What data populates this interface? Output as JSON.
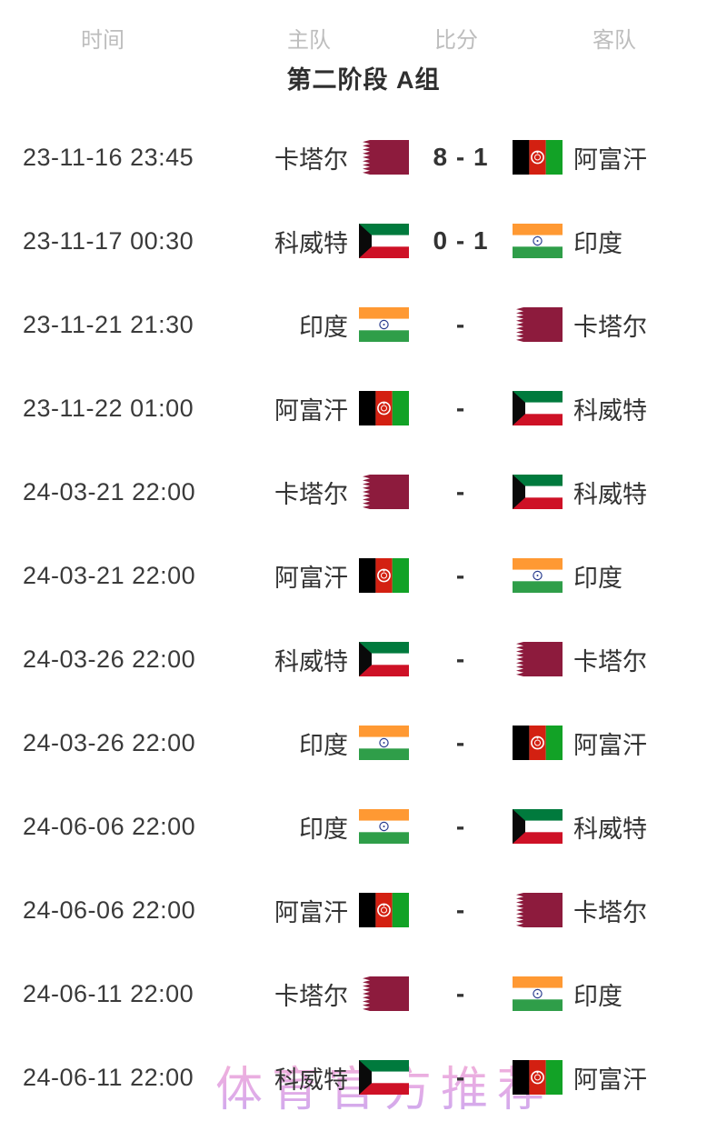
{
  "table": {
    "columns": [
      "时间",
      "主队",
      "比分",
      "客队"
    ],
    "group_title": "第二阶段 A组",
    "matches": [
      {
        "time": "23-11-16 23:45",
        "home_team": "卡塔尔",
        "home_flag": "qatar",
        "score": "8 - 1",
        "away_team": "阿富汗",
        "away_flag": "afghanistan"
      },
      {
        "time": "23-11-17 00:30",
        "home_team": "科威特",
        "home_flag": "kuwait",
        "score": "0 - 1",
        "away_team": "印度",
        "away_flag": "india"
      },
      {
        "time": "23-11-21 21:30",
        "home_team": "印度",
        "home_flag": "india",
        "score": "-",
        "away_team": "卡塔尔",
        "away_flag": "qatar"
      },
      {
        "time": "23-11-22 01:00",
        "home_team": "阿富汗",
        "home_flag": "afghanistan",
        "score": "-",
        "away_team": "科威特",
        "away_flag": "kuwait"
      },
      {
        "time": "24-03-21 22:00",
        "home_team": "卡塔尔",
        "home_flag": "qatar",
        "score": "-",
        "away_team": "科威特",
        "away_flag": "kuwait"
      },
      {
        "time": "24-03-21 22:00",
        "home_team": "阿富汗",
        "home_flag": "afghanistan",
        "score": "-",
        "away_team": "印度",
        "away_flag": "india"
      },
      {
        "time": "24-03-26 22:00",
        "home_team": "科威特",
        "home_flag": "kuwait",
        "score": "-",
        "away_team": "卡塔尔",
        "away_flag": "qatar"
      },
      {
        "time": "24-03-26 22:00",
        "home_team": "印度",
        "home_flag": "india",
        "score": "-",
        "away_team": "阿富汗",
        "away_flag": "afghanistan"
      },
      {
        "time": "24-06-06 22:00",
        "home_team": "印度",
        "home_flag": "india",
        "score": "-",
        "away_team": "科威特",
        "away_flag": "kuwait"
      },
      {
        "time": "24-06-06 22:00",
        "home_team": "阿富汗",
        "home_flag": "afghanistan",
        "score": "-",
        "away_team": "卡塔尔",
        "away_flag": "qatar"
      },
      {
        "time": "24-06-11 22:00",
        "home_team": "卡塔尔",
        "home_flag": "qatar",
        "score": "-",
        "away_team": "印度",
        "away_flag": "india"
      },
      {
        "time": "24-06-11 22:00",
        "home_team": "科威特",
        "home_flag": "kuwait",
        "score": "-",
        "away_team": "阿富汗",
        "away_flag": "afghanistan"
      }
    ]
  },
  "watermark": {
    "text": "体育官方推荐"
  },
  "colors": {
    "qatar_maroon": "#8d1b3d",
    "afghanistan_black": "#000000",
    "afghanistan_red": "#d32011",
    "afghanistan_green": "#12a226",
    "kuwait_green": "#007a3d",
    "kuwait_red": "#ce1126",
    "kuwait_black": "#0a0a0a",
    "india_saffron": "#ff9933",
    "india_white": "#ffffff",
    "india_green": "#2f9e49",
    "india_navy": "#2a3d8f",
    "header_gray": "#bdbdbd",
    "text_dark": "#333333",
    "watermark_pink": "#f6b2d4",
    "watermark_purple": "#c9a8ef"
  }
}
